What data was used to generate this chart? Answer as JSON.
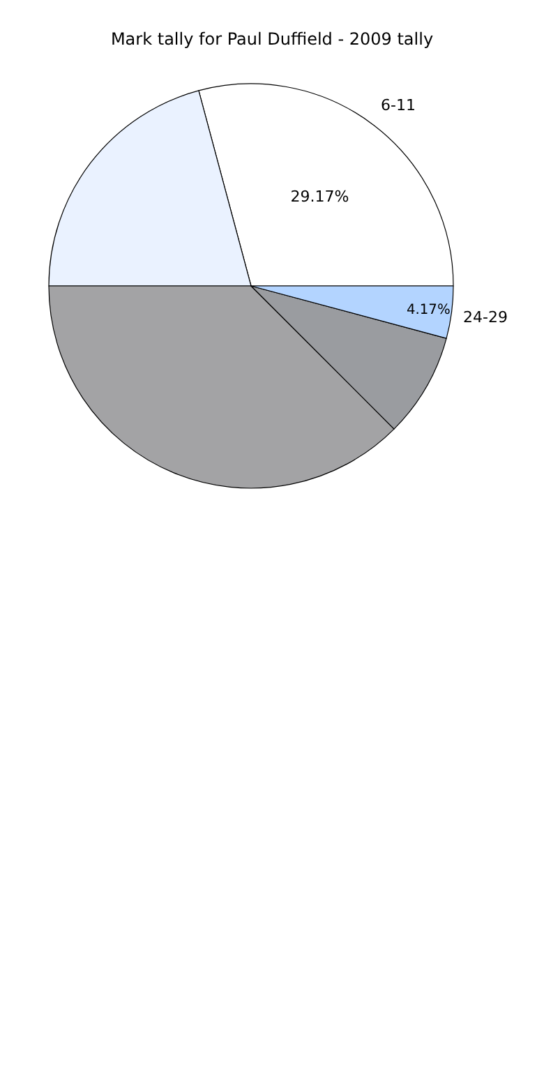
{
  "chart_data": {
    "type": "pie",
    "title": "Mark tally for Paul Duffield - 2009 tally",
    "categories": [
      "6-11",
      null,
      null,
      null,
      "24-29"
    ],
    "values": [
      29.17,
      20.83,
      37.5,
      8.33,
      4.17
    ],
    "value_labels": [
      "29.17%",
      null,
      null,
      null,
      "4.17%"
    ],
    "colors": [
      "#ffffff",
      "#eaf2ff",
      "#a3a3a5",
      "#9a9ca0",
      "#b3d4ff"
    ],
    "legend": false
  }
}
